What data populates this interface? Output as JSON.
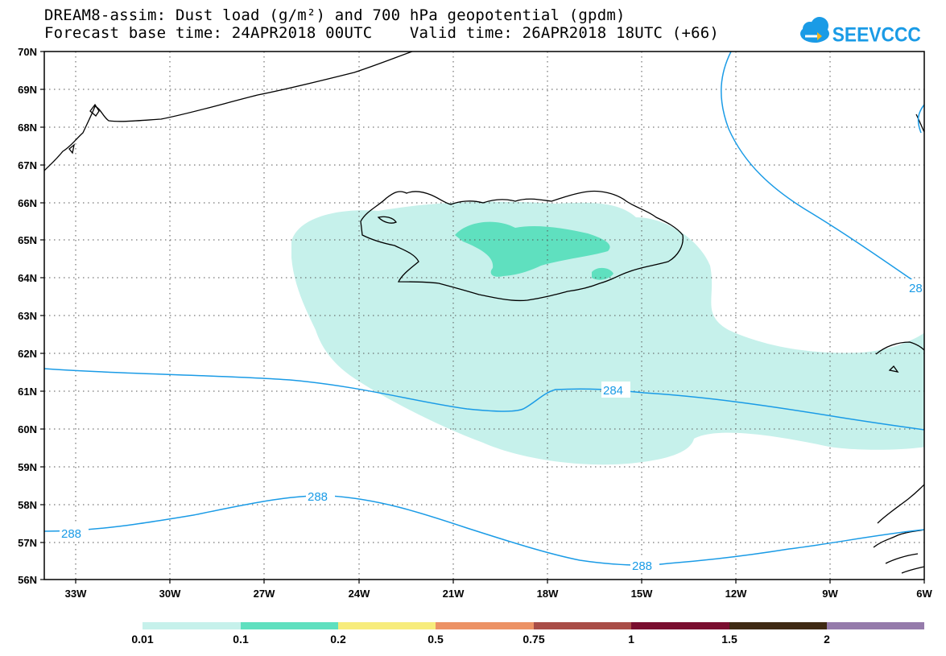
{
  "title": {
    "line1": "DREAM8-assim: Dust load (g/m²) and 700 hPa geopotential (gpdm)",
    "line2": "Forecast base time: 24APR2018 00UTC    Valid time: 26APR2018 18UTC (+66)"
  },
  "logo": {
    "text": "SEEVCCC",
    "icon": "cloud-icon",
    "color": "#1a9be6"
  },
  "map": {
    "lat_range": [
      56,
      70
    ],
    "lon_range": [
      -34.5,
      -6
    ],
    "lat_labels": [
      "70N",
      "69N",
      "68N",
      "67N",
      "66N",
      "65N",
      "64N",
      "63N",
      "62N",
      "61N",
      "60N",
      "59N",
      "58N",
      "57N",
      "56N"
    ],
    "lon_labels": [
      "33W",
      "30W",
      "27W",
      "24W",
      "21W",
      "18W",
      "15W",
      "12W",
      "9W",
      "6W"
    ],
    "dust_colors": {
      "light": "#c6f1eb",
      "medium": "#5fe0bf"
    },
    "contour_color": "#1a9be6",
    "contours": [
      {
        "level": "284",
        "labels": [
          "284"
        ]
      },
      {
        "level": "288",
        "labels": [
          "288",
          "288",
          "288",
          "28"
        ]
      }
    ]
  },
  "colorbar": {
    "colors": [
      "#c6f1eb",
      "#5fe0bf",
      "#f7ec7c",
      "#ec9265",
      "#a94d47",
      "#7a0e2f",
      "#3f2a14",
      "#957bab"
    ],
    "labels": [
      "0.01",
      "0.1",
      "0.2",
      "0.5",
      "0.75",
      "1",
      "1.5",
      "2"
    ]
  }
}
